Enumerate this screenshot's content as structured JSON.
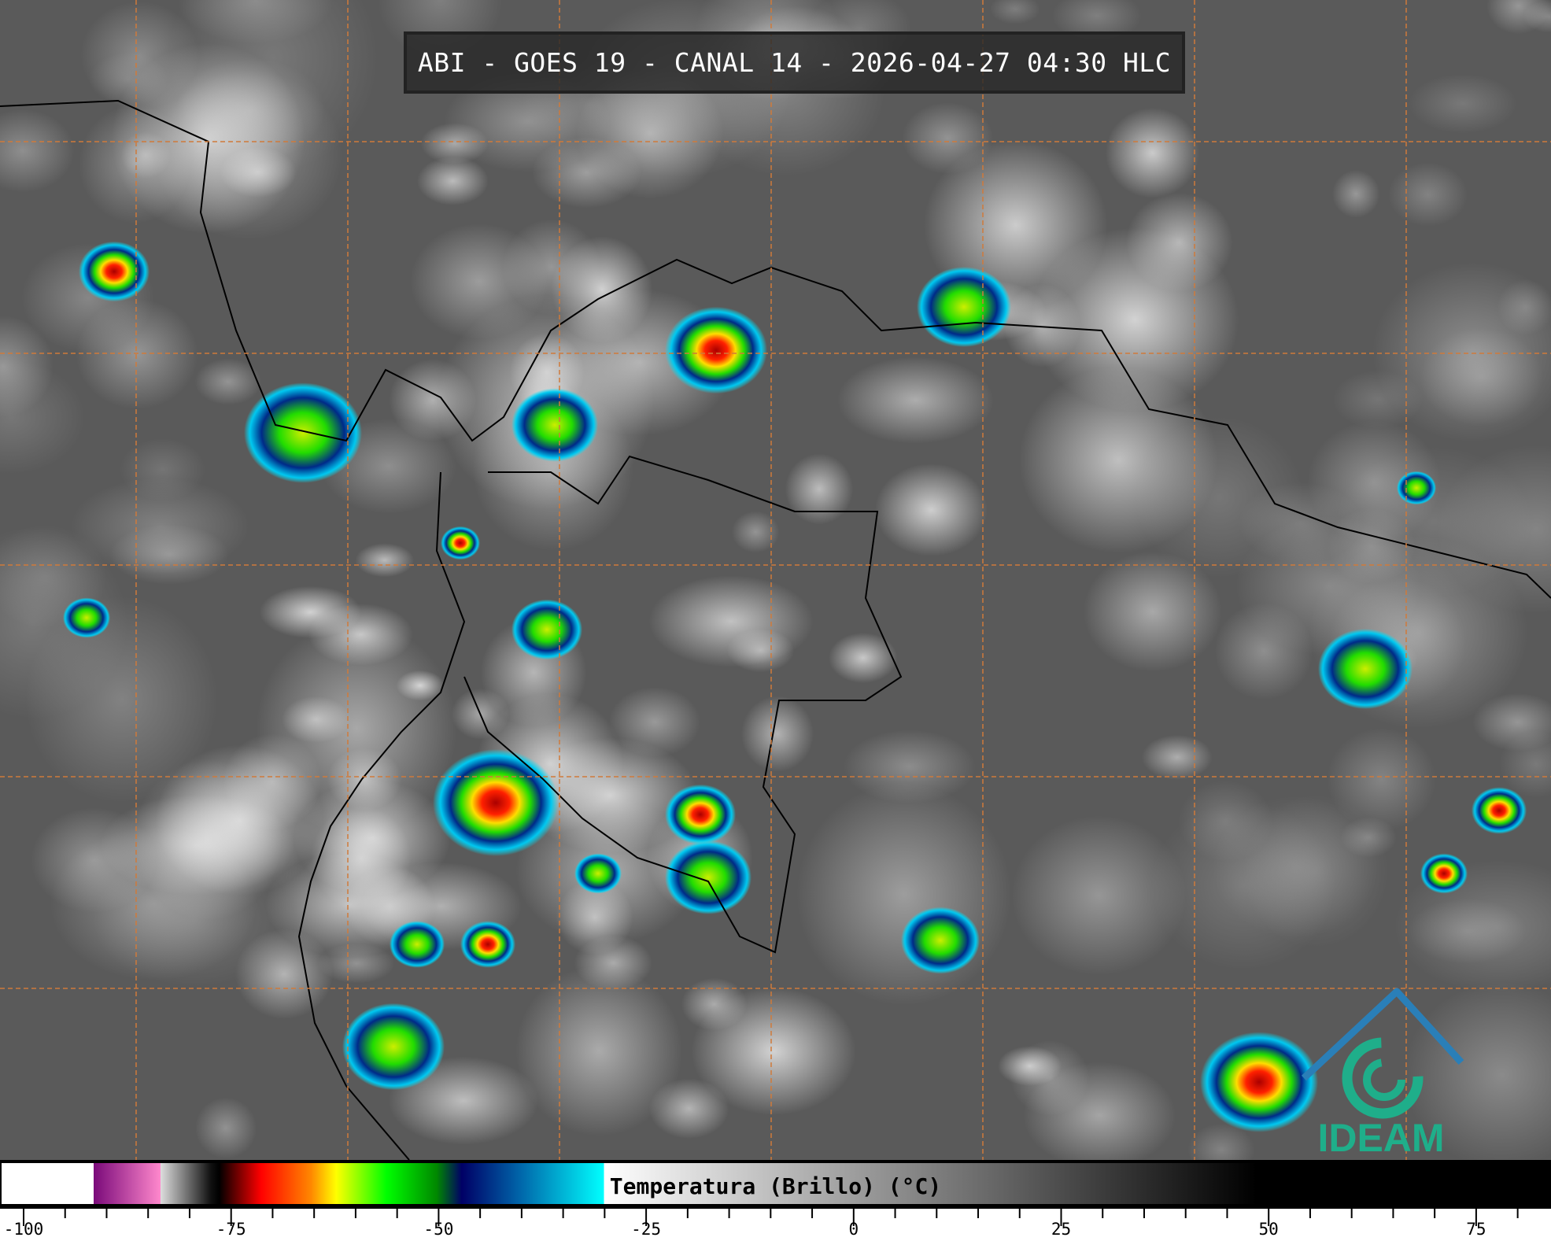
{
  "title": "ABI - GOES 19 - CANAL 14 - 2026-04-27 04:30 HLC",
  "colorbar": {
    "label": "Temperatura (Brillo) (°C)",
    "range": [
      -100,
      85
    ],
    "ticks": [
      "-100",
      "-75",
      "-50",
      "-25",
      "0",
      "25",
      "50",
      "75"
    ],
    "tick_values": [
      -100,
      -75,
      -50,
      -25,
      0,
      25,
      50,
      75
    ],
    "stops": [
      {
        "t": -100,
        "color": "#ffffff"
      },
      {
        "t": -89,
        "color": "#ffffff"
      },
      {
        "t": -89,
        "color": "#7a0a7a"
      },
      {
        "t": -81,
        "color": "#ff88cc"
      },
      {
        "t": -81,
        "color": "#dddddd"
      },
      {
        "t": -75,
        "color": "#111111"
      },
      {
        "t": -74,
        "color": "#000000"
      },
      {
        "t": -69,
        "color": "#ff0000"
      },
      {
        "t": -63,
        "color": "#ff8800"
      },
      {
        "t": -60,
        "color": "#ffff00"
      },
      {
        "t": -54,
        "color": "#00ff00"
      },
      {
        "t": -48,
        "color": "#008800"
      },
      {
        "t": -45,
        "color": "#000066"
      },
      {
        "t": -38,
        "color": "#0066aa"
      },
      {
        "t": -28,
        "color": "#00ffff"
      },
      {
        "t": -28,
        "color": "#ffffff"
      },
      {
        "t": 50,
        "color": "#000000"
      },
      {
        "t": 85,
        "color": "#000000"
      }
    ]
  },
  "logo": {
    "text": "IDEAM",
    "color": "#1fae8a",
    "accent": "#2a7fb8"
  },
  "grid_color": "#d07a3a"
}
